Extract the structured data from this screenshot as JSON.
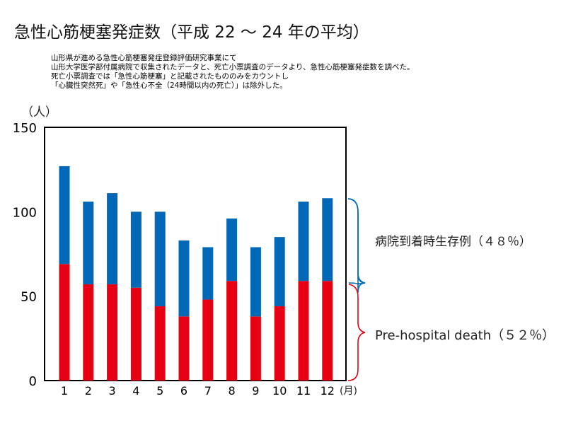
{
  "title": "急性心筋梗塞発症数（平成 22 〜 24 年の平均）",
  "notes": [
    "山形県が進める急性心筋梗塞発症登録評価研究事業にて",
    "山形大学医学部付属病院で収集されたデータと、死亡小票調査のデータより、急性心筋梗塞発症数を調べた。",
    "死亡小票調査では「急性心筋梗塞」と記載されたもののみをカウントし",
    "「心臓性突然死」や「急性心不全（24時間以内の死亡）」は除外した。"
  ],
  "chart_data": {
    "type": "bar",
    "stacked": true,
    "ylabel": "（人）",
    "xlabel": "(月)",
    "ylim": [
      0,
      150
    ],
    "yticks": [
      "0",
      "50",
      "100",
      "150"
    ],
    "categories": [
      "1",
      "2",
      "3",
      "4",
      "5",
      "6",
      "7",
      "8",
      "9",
      "10",
      "11",
      "12"
    ],
    "series": [
      {
        "name": "Pre-hospital death（５２％）",
        "color": "#e60012",
        "values": [
          69,
          57,
          57,
          55,
          44,
          38,
          48,
          59,
          38,
          44,
          59,
          59
        ]
      },
      {
        "name": "病院到着時生存例（４８％）",
        "color": "#0068b7",
        "values": [
          58,
          49,
          54,
          45,
          56,
          45,
          31,
          37,
          41,
          41,
          47,
          49
        ]
      }
    ],
    "grid": false,
    "legend": "right, brace annotations"
  }
}
